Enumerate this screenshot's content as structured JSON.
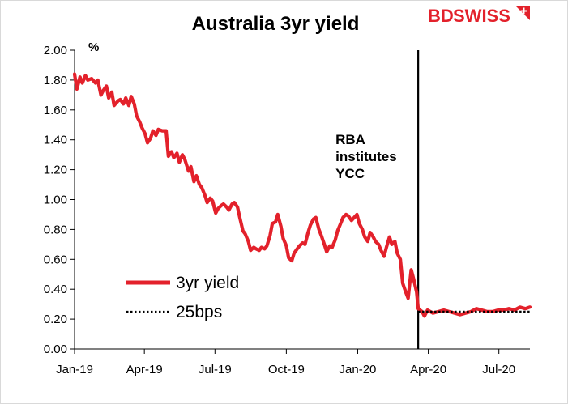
{
  "chart_data": {
    "type": "line",
    "title": "Australia 3yr yield",
    "ylabel": "%",
    "xlabel": "",
    "ylim": [
      0,
      2
    ],
    "yticks": [
      "0.00",
      "0.20",
      "0.40",
      "0.60",
      "0.80",
      "1.00",
      "1.20",
      "1.40",
      "1.60",
      "1.80",
      "2.00"
    ],
    "xticks": [
      "Jan-19",
      "Apr-19",
      "Jul-19",
      "Oct-19",
      "Jan-20",
      "Apr-20",
      "Jul-20"
    ],
    "xlim": [
      "2019-01-01",
      "2020-08-10"
    ],
    "legend_position": "lower-left",
    "annotation": {
      "lines": [
        "RBA",
        "institutes",
        "YCC"
      ],
      "date": "2020-03-19"
    },
    "series": [
      {
        "name": "3yr yield",
        "color": "#e3212b",
        "style": "solid",
        "points": [
          [
            "2019-01-01",
            1.84
          ],
          [
            "2019-01-04",
            1.74
          ],
          [
            "2019-01-08",
            1.82
          ],
          [
            "2019-01-11",
            1.78
          ],
          [
            "2019-01-15",
            1.83
          ],
          [
            "2019-01-18",
            1.8
          ],
          [
            "2019-01-23",
            1.81
          ],
          [
            "2019-01-28",
            1.78
          ],
          [
            "2019-01-31",
            1.8
          ],
          [
            "2019-02-04",
            1.7
          ],
          [
            "2019-02-07",
            1.73
          ],
          [
            "2019-02-11",
            1.76
          ],
          [
            "2019-02-14",
            1.68
          ],
          [
            "2019-02-18",
            1.72
          ],
          [
            "2019-02-21",
            1.63
          ],
          [
            "2019-02-26",
            1.66
          ],
          [
            "2019-03-01",
            1.67
          ],
          [
            "2019-03-05",
            1.64
          ],
          [
            "2019-03-08",
            1.68
          ],
          [
            "2019-03-12",
            1.63
          ],
          [
            "2019-03-15",
            1.69
          ],
          [
            "2019-03-19",
            1.64
          ],
          [
            "2019-03-22",
            1.56
          ],
          [
            "2019-03-26",
            1.52
          ],
          [
            "2019-03-29",
            1.48
          ],
          [
            "2019-04-02",
            1.44
          ],
          [
            "2019-04-05",
            1.38
          ],
          [
            "2019-04-09",
            1.41
          ],
          [
            "2019-04-12",
            1.46
          ],
          [
            "2019-04-16",
            1.43
          ],
          [
            "2019-04-19",
            1.47
          ],
          [
            "2019-04-24",
            1.46
          ],
          [
            "2019-04-29",
            1.46
          ],
          [
            "2019-05-02",
            1.29
          ],
          [
            "2019-05-06",
            1.32
          ],
          [
            "2019-05-09",
            1.28
          ],
          [
            "2019-05-13",
            1.31
          ],
          [
            "2019-05-16",
            1.25
          ],
          [
            "2019-05-20",
            1.3
          ],
          [
            "2019-05-23",
            1.27
          ],
          [
            "2019-05-28",
            1.19
          ],
          [
            "2019-05-31",
            1.22
          ],
          [
            "2019-06-04",
            1.12
          ],
          [
            "2019-06-07",
            1.16
          ],
          [
            "2019-06-11",
            1.1
          ],
          [
            "2019-06-14",
            1.08
          ],
          [
            "2019-06-18",
            1.03
          ],
          [
            "2019-06-21",
            0.98
          ],
          [
            "2019-06-25",
            1.01
          ],
          [
            "2019-06-28",
            0.99
          ],
          [
            "2019-07-02",
            0.91
          ],
          [
            "2019-07-05",
            0.94
          ],
          [
            "2019-07-09",
            0.96
          ],
          [
            "2019-07-12",
            0.97
          ],
          [
            "2019-07-16",
            0.95
          ],
          [
            "2019-07-19",
            0.93
          ],
          [
            "2019-07-23",
            0.97
          ],
          [
            "2019-07-26",
            0.98
          ],
          [
            "2019-07-30",
            0.95
          ],
          [
            "2019-08-02",
            0.88
          ],
          [
            "2019-08-06",
            0.79
          ],
          [
            "2019-08-09",
            0.77
          ],
          [
            "2019-08-13",
            0.72
          ],
          [
            "2019-08-16",
            0.66
          ],
          [
            "2019-08-20",
            0.68
          ],
          [
            "2019-08-23",
            0.67
          ],
          [
            "2019-08-27",
            0.66
          ],
          [
            "2019-08-30",
            0.68
          ],
          [
            "2019-09-03",
            0.67
          ],
          [
            "2019-09-06",
            0.69
          ],
          [
            "2019-09-10",
            0.76
          ],
          [
            "2019-09-13",
            0.84
          ],
          [
            "2019-09-17",
            0.85
          ],
          [
            "2019-09-20",
            0.9
          ],
          [
            "2019-09-24",
            0.82
          ],
          [
            "2019-09-27",
            0.74
          ],
          [
            "2019-10-01",
            0.69
          ],
          [
            "2019-10-04",
            0.61
          ],
          [
            "2019-10-08",
            0.59
          ],
          [
            "2019-10-11",
            0.64
          ],
          [
            "2019-10-15",
            0.67
          ],
          [
            "2019-10-18",
            0.69
          ],
          [
            "2019-10-22",
            0.71
          ],
          [
            "2019-10-25",
            0.7
          ],
          [
            "2019-10-29",
            0.78
          ],
          [
            "2019-11-01",
            0.83
          ],
          [
            "2019-11-05",
            0.87
          ],
          [
            "2019-11-08",
            0.88
          ],
          [
            "2019-11-12",
            0.8
          ],
          [
            "2019-11-15",
            0.76
          ],
          [
            "2019-11-19",
            0.7
          ],
          [
            "2019-11-22",
            0.65
          ],
          [
            "2019-11-26",
            0.69
          ],
          [
            "2019-11-29",
            0.68
          ],
          [
            "2019-12-03",
            0.73
          ],
          [
            "2019-12-06",
            0.79
          ],
          [
            "2019-12-10",
            0.84
          ],
          [
            "2019-12-13",
            0.88
          ],
          [
            "2019-12-17",
            0.9
          ],
          [
            "2019-12-20",
            0.89
          ],
          [
            "2019-12-24",
            0.86
          ],
          [
            "2019-12-31",
            0.9
          ],
          [
            "2020-01-03",
            0.84
          ],
          [
            "2020-01-07",
            0.8
          ],
          [
            "2020-01-10",
            0.75
          ],
          [
            "2020-01-14",
            0.72
          ],
          [
            "2020-01-17",
            0.78
          ],
          [
            "2020-01-21",
            0.75
          ],
          [
            "2020-01-24",
            0.72
          ],
          [
            "2020-01-28",
            0.7
          ],
          [
            "2020-01-31",
            0.66
          ],
          [
            "2020-02-04",
            0.62
          ],
          [
            "2020-02-07",
            0.68
          ],
          [
            "2020-02-11",
            0.75
          ],
          [
            "2020-02-14",
            0.7
          ],
          [
            "2020-02-18",
            0.72
          ],
          [
            "2020-02-21",
            0.64
          ],
          [
            "2020-02-25",
            0.6
          ],
          [
            "2020-02-28",
            0.44
          ],
          [
            "2020-03-03",
            0.38
          ],
          [
            "2020-03-06",
            0.34
          ],
          [
            "2020-03-10",
            0.53
          ],
          [
            "2020-03-13",
            0.47
          ],
          [
            "2020-03-17",
            0.38
          ],
          [
            "2020-03-19",
            0.27
          ],
          [
            "2020-03-24",
            0.25
          ],
          [
            "2020-03-27",
            0.22
          ],
          [
            "2020-03-31",
            0.26
          ],
          [
            "2020-04-07",
            0.24
          ],
          [
            "2020-04-14",
            0.25
          ],
          [
            "2020-04-21",
            0.26
          ],
          [
            "2020-04-28",
            0.25
          ],
          [
            "2020-05-05",
            0.24
          ],
          [
            "2020-05-12",
            0.23
          ],
          [
            "2020-05-19",
            0.24
          ],
          [
            "2020-05-26",
            0.25
          ],
          [
            "2020-06-02",
            0.27
          ],
          [
            "2020-06-09",
            0.26
          ],
          [
            "2020-06-16",
            0.25
          ],
          [
            "2020-06-23",
            0.25
          ],
          [
            "2020-06-30",
            0.26
          ],
          [
            "2020-07-07",
            0.26
          ],
          [
            "2020-07-14",
            0.27
          ],
          [
            "2020-07-21",
            0.26
          ],
          [
            "2020-07-28",
            0.28
          ],
          [
            "2020-08-04",
            0.27
          ],
          [
            "2020-08-10",
            0.28
          ]
        ]
      },
      {
        "name": "25bps",
        "color": "#000000",
        "style": "dotted",
        "points": [
          [
            "2020-03-19",
            0.25
          ],
          [
            "2020-08-10",
            0.25
          ]
        ]
      }
    ]
  },
  "brand": {
    "logo_text_bd": "BD",
    "logo_text_swiss": "SWISS",
    "logo_color": "#e3212b"
  }
}
